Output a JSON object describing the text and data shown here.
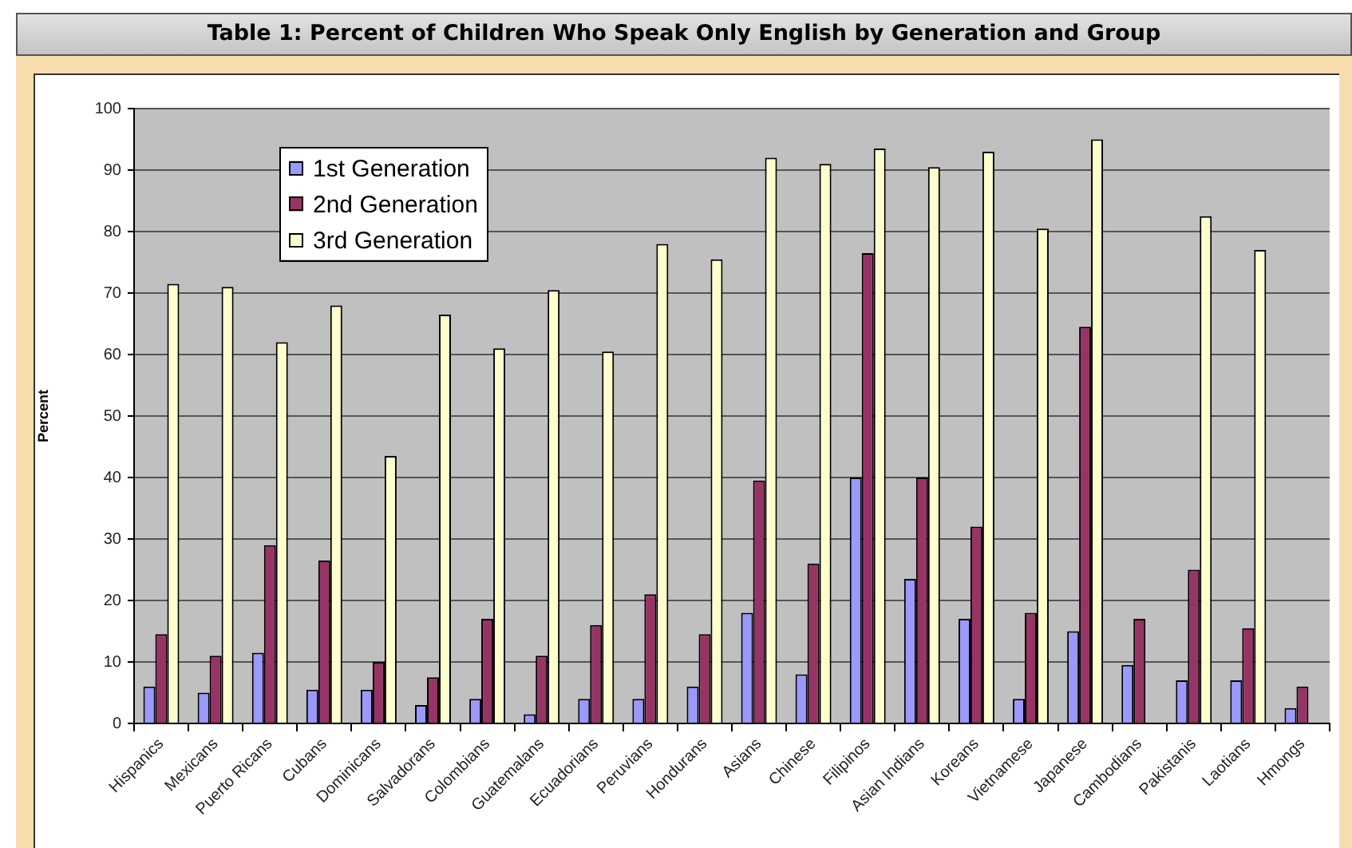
{
  "chart_data": {
    "type": "bar",
    "title": "Table 1: Percent of Children Who Speak Only English by Generation and Group",
    "ylabel": "Percent",
    "categories": [
      "Hispanics",
      "Mexicans",
      "Puerto Ricans",
      "Cubans",
      "Dominicans",
      "Salvadorans",
      "Colombians",
      "Guatemalans",
      "Ecuadorians",
      "Peruvians",
      "Hondurans",
      "Asians",
      "Chinese",
      "Filipinos",
      "Asian Indians",
      "Koreans",
      "Vietnamese",
      "Japanese",
      "Cambodians",
      "Pakistanis",
      "Laotians",
      "Hmongs"
    ],
    "series": [
      {
        "name": "1st Generation",
        "color": "#9999ff",
        "values": [
          6,
          5,
          11.5,
          5.5,
          5.5,
          3,
          4,
          1.5,
          4,
          4,
          6,
          18,
          8,
          40,
          23.5,
          17,
          4,
          15,
          9.5,
          7,
          7,
          2.5
        ]
      },
      {
        "name": "2nd Generation",
        "color": "#993366",
        "values": [
          14.5,
          11,
          29,
          26.5,
          10,
          7.5,
          17,
          11,
          16,
          21,
          14.5,
          39.5,
          26,
          76.5,
          40,
          32,
          18,
          64.5,
          17,
          25,
          15.5,
          6
        ]
      },
      {
        "name": "3rd Generation",
        "color": "#ffffcc",
        "values": [
          71.5,
          71,
          62,
          68,
          43.5,
          66.5,
          61,
          70.5,
          60.5,
          78,
          75.5,
          92,
          91,
          93.5,
          90.5,
          93,
          80.5,
          95,
          null,
          82.5,
          77,
          null
        ]
      }
    ],
    "ylim": [
      0,
      100
    ],
    "yticks": [
      0,
      10,
      20,
      30,
      40,
      50,
      60,
      70,
      80,
      90,
      100
    ],
    "grid": "y",
    "legend": "top left"
  }
}
